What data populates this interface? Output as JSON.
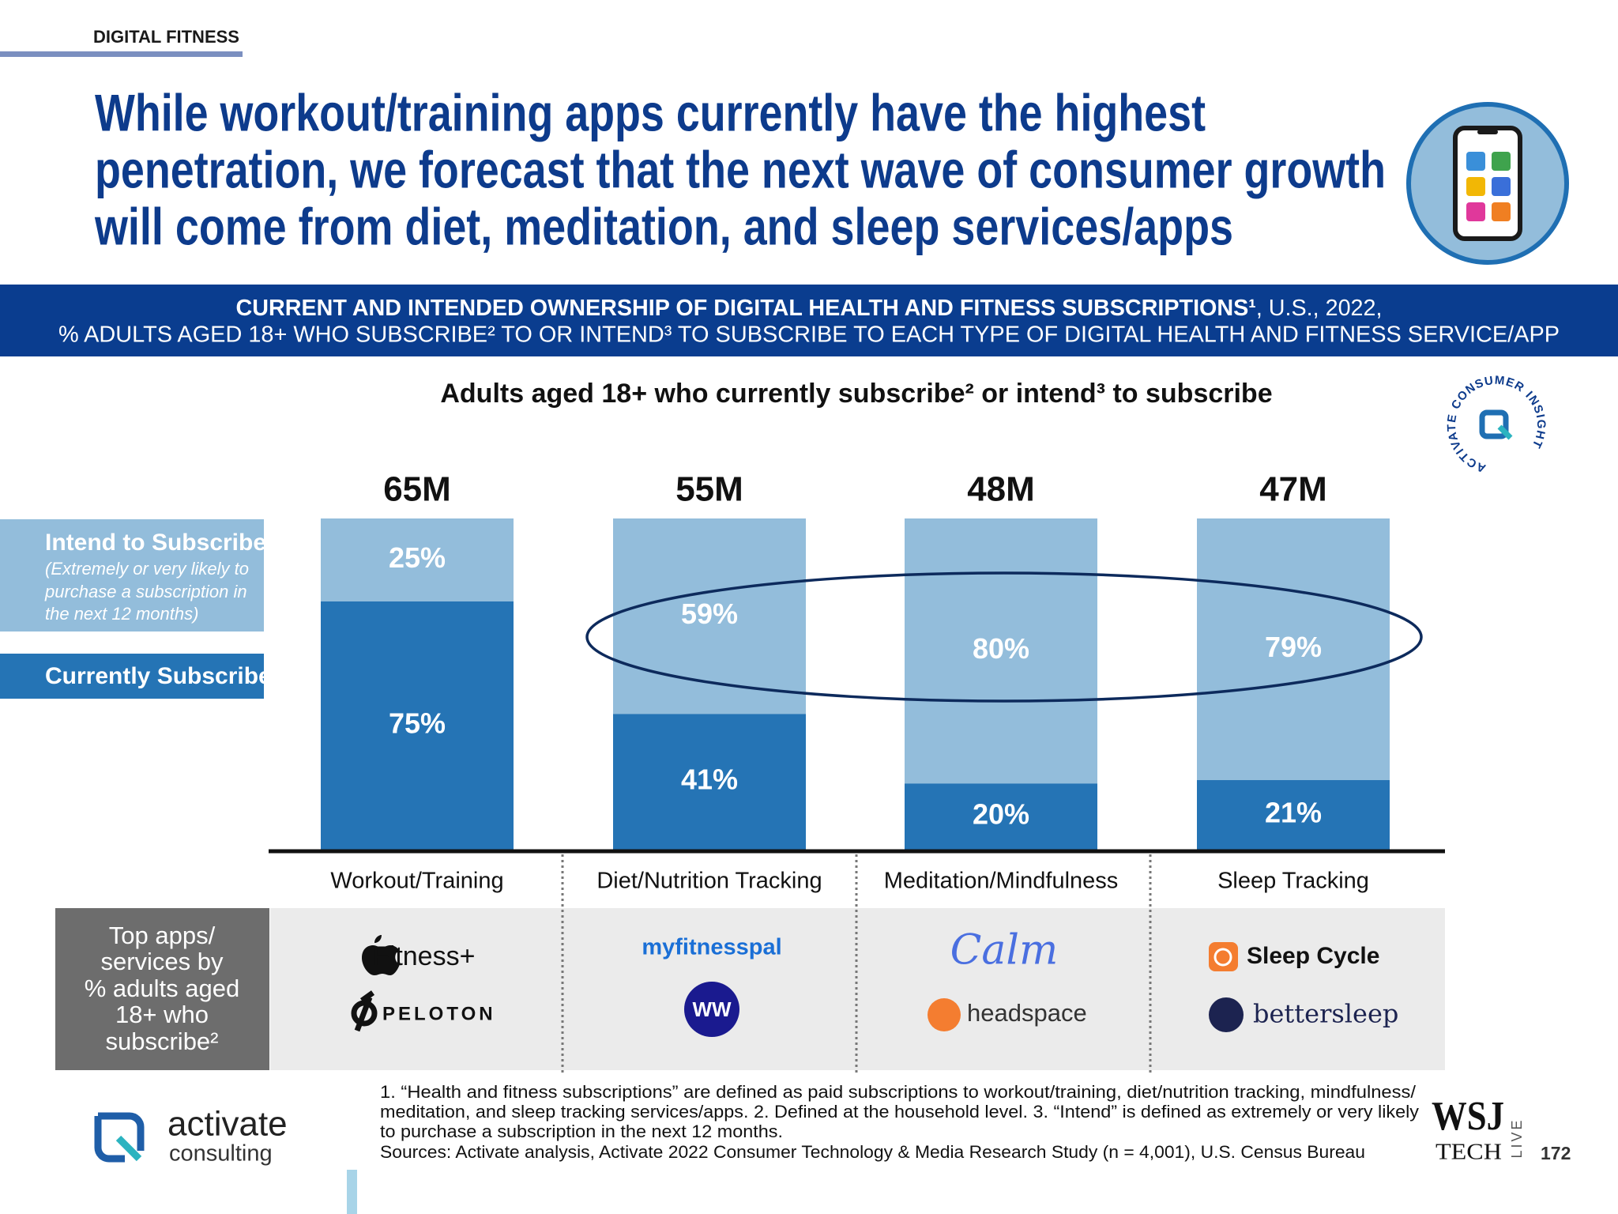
{
  "header": {
    "section": "DIGITAL FITNESS",
    "headline": [
      "While workout/training apps currently have the highest",
      "penetration, we forecast that the next wave of consumer growth",
      "will come from diet, meditation, and sleep services/apps"
    ]
  },
  "banner": {
    "title": "CURRENT AND INTENDED OWNERSHIP OF DIGITAL HEALTH AND FITNESS SUBSCRIPTIONS¹",
    "title_suffix": ", U.S., 2022,",
    "subtitle": "% ADULTS AGED 18+ WHO SUBSCRIBE² TO OR INTEND³ TO SUBSCRIBE TO EACH TYPE OF DIGITAL HEALTH AND FITNESS SERVICE/APP"
  },
  "badge": "ACTIVATE CONSUMER INSIGHT",
  "chart_data": {
    "type": "bar",
    "stacked": true,
    "title": "Adults aged 18+ who currently subscribe² or intend³ to subscribe",
    "categories": [
      "Workout/Training",
      "Diet/Nutrition Tracking",
      "Meditation/Mindfulness",
      "Sleep Tracking"
    ],
    "series": [
      {
        "name": "Currently Subscribe",
        "color": "#2574b5",
        "values": [
          75,
          41,
          20,
          21
        ],
        "value_labels": [
          "75%",
          "41%",
          "20%",
          "21%"
        ]
      },
      {
        "name": "Intend to Subscribe",
        "color": "#93bddb",
        "values": [
          25,
          59,
          80,
          79
        ],
        "value_labels": [
          "25%",
          "59%",
          "80%",
          "79%"
        ]
      }
    ],
    "totals": {
      "values": [
        65,
        55,
        48,
        47
      ],
      "value_labels": [
        "65M",
        "55M",
        "48M",
        "47M"
      ]
    },
    "legend_note": [
      "(Extremely or very likely to",
      "purchase a subscription in",
      "the next 12 months)"
    ]
  },
  "apps": {
    "label": [
      "Top apps/",
      "services by",
      "% adults aged",
      "18+ who",
      "subscribe²"
    ],
    "items": [
      [
        "Fitness+",
        "PELOTON"
      ],
      [
        "myfitnesspal",
        "WW"
      ],
      [
        "Calm",
        "headspace"
      ],
      [
        "Sleep Cycle",
        "bettersleep"
      ]
    ]
  },
  "footnotes": [
    "1. “Health and fitness subscriptions” are defined as paid subscriptions to workout/training, diet/nutrition tracking, mindfulness/",
    "meditation, and sleep tracking services/apps.  2. Defined at the household level.  3. “Intend” is defined as extremely or very likely",
    "to purchase a subscription in the next 12 months.",
    "Sources: Activate analysis, Activate 2022 Consumer Technology & Media Research Study (n = 4,001), U.S. Census Bureau"
  ],
  "logo": {
    "name": "activate",
    "tagline": "consulting"
  },
  "wsj": {
    "brand": "WSJ",
    "tech": "TECH",
    "live": "LIVE"
  },
  "page_number": "172"
}
